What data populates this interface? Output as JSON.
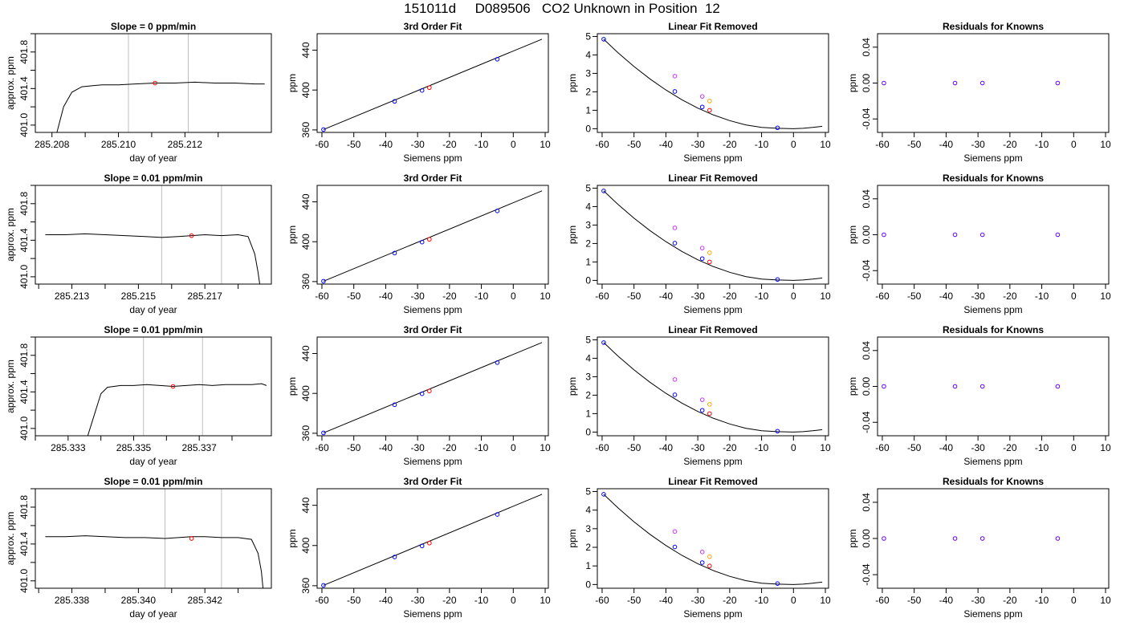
{
  "page_title": "151011d     D089506   CO2 Unknown in Position  12",
  "colors": {
    "trace": "#000000",
    "vline": "#bebebe",
    "known": "#0000ff",
    "unknown": "#ff0000",
    "magenta": "#cc33ff",
    "orange": "#ffa500",
    "residual": "#6600ff"
  },
  "chart_data": [
    {
      "type": "line",
      "row": 0,
      "title": "Slope =  0  ppm/min",
      "xlabel": "day of year",
      "ylabel": "approx. ppm",
      "xticks": [
        "285.208",
        "285.210",
        "285.212"
      ],
      "xtick_values": [
        285.208,
        285.21,
        285.212
      ],
      "yticks": [
        "401.0",
        "401.4",
        "401.8"
      ],
      "ytick_values": [
        401.0,
        401.4,
        401.8
      ],
      "xlim": [
        285.2075,
        285.2146
      ],
      "ylim": [
        400.92,
        402.0
      ],
      "vlines": [
        285.2103,
        285.2121
      ],
      "marker": {
        "x": 285.2111,
        "y": 401.46
      },
      "trace": {
        "x": [
          285.20815,
          285.20835,
          285.2086,
          285.2089,
          285.2092,
          285.2095,
          285.21,
          285.2105,
          285.2111,
          285.2117,
          285.2123,
          285.2129,
          285.2135,
          285.2141,
          285.2144
        ],
        "y": [
          400.92,
          401.2,
          401.36,
          401.42,
          401.43,
          401.44,
          401.44,
          401.45,
          401.46,
          401.46,
          401.47,
          401.46,
          401.46,
          401.45,
          401.45
        ]
      }
    },
    {
      "type": "line",
      "row": 1,
      "title": "Slope =  0.01  ppm/min",
      "xlabel": "day of year",
      "ylabel": "approx. ppm",
      "xticks": [
        "285.213",
        "285.215",
        "285.217"
      ],
      "xtick_values": [
        285.213,
        285.215,
        285.217
      ],
      "yticks": [
        "401.0",
        "401.4",
        "401.8"
      ],
      "ytick_values": [
        401.0,
        401.4,
        401.8
      ],
      "xlim": [
        285.2119,
        285.219
      ],
      "ylim": [
        400.92,
        402.0
      ],
      "vlines": [
        285.2157,
        285.2175
      ],
      "marker": {
        "x": 285.2166,
        "y": 401.45
      },
      "trace": {
        "x": [
          285.2122,
          285.2128,
          285.2134,
          285.214,
          285.2146,
          285.2152,
          285.2157,
          285.2162,
          285.2166,
          285.217,
          285.2175,
          285.218,
          285.2183,
          285.2185,
          285.2186,
          285.21865
        ],
        "y": [
          401.46,
          401.46,
          401.47,
          401.46,
          401.45,
          401.44,
          401.43,
          401.44,
          401.45,
          401.46,
          401.45,
          401.46,
          401.44,
          401.25,
          401.05,
          400.92
        ]
      }
    },
    {
      "type": "line",
      "row": 2,
      "title": "Slope =  0.01  ppm/min",
      "xlabel": "day of year",
      "ylabel": "approx. ppm",
      "xticks": [
        "285.333",
        "285.335",
        "285.337"
      ],
      "xtick_values": [
        285.333,
        285.335,
        285.337
      ],
      "yticks": [
        "401.0",
        "401.4",
        "401.8"
      ],
      "ytick_values": [
        401.0,
        401.4,
        401.8
      ],
      "xlim": [
        285.332,
        285.3392
      ],
      "ylim": [
        400.92,
        402.0
      ],
      "vlines": [
        285.3353,
        285.3371
      ],
      "marker": {
        "x": 285.3362,
        "y": 401.46
      },
      "trace": {
        "x": [
          285.3336,
          285.3338,
          285.334,
          285.3342,
          285.3346,
          285.335,
          285.3354,
          285.3358,
          285.3362,
          285.3366,
          285.337,
          285.3374,
          285.3378,
          285.3382,
          285.3386,
          285.3389,
          285.33905
        ],
        "y": [
          400.92,
          401.15,
          401.38,
          401.45,
          401.47,
          401.47,
          401.48,
          401.47,
          401.46,
          401.47,
          401.48,
          401.47,
          401.48,
          401.48,
          401.48,
          401.49,
          401.47
        ]
      }
    },
    {
      "type": "line",
      "row": 3,
      "title": "Slope =  0.01  ppm/min",
      "xlabel": "day of year",
      "ylabel": "approx. ppm",
      "xticks": [
        "285.338",
        "285.340",
        "285.342"
      ],
      "xtick_values": [
        285.338,
        285.34,
        285.342
      ],
      "yticks": [
        "401.0",
        "401.4",
        "401.8"
      ],
      "ytick_values": [
        401.0,
        401.4,
        401.8
      ],
      "xlim": [
        285.3369,
        285.344
      ],
      "ylim": [
        400.92,
        402.0
      ],
      "vlines": [
        285.3408,
        285.3425
      ],
      "marker": {
        "x": 285.3416,
        "y": 401.46
      },
      "trace": {
        "x": [
          285.3372,
          285.3378,
          285.3384,
          285.339,
          285.3396,
          285.3402,
          285.3408,
          285.3412,
          285.3416,
          285.342,
          285.3425,
          285.343,
          285.3434,
          285.3436,
          285.3437,
          285.34375
        ],
        "y": [
          401.48,
          401.48,
          401.49,
          401.48,
          401.47,
          401.47,
          401.46,
          401.47,
          401.48,
          401.48,
          401.47,
          401.47,
          401.45,
          401.3,
          401.1,
          400.92
        ]
      }
    },
    {
      "type": "scatter",
      "kind": "fit",
      "title": "3rd Order Fit",
      "xlabel": "Siemens ppm",
      "ylabel": "ppm",
      "xticks": [
        "-60",
        "-50",
        "-40",
        "-30",
        "-20",
        "-10",
        "0",
        "10"
      ],
      "xtick_values": [
        -60,
        -50,
        -40,
        -30,
        -20,
        -10,
        0,
        10
      ],
      "yticks": [
        "360",
        "400",
        "440"
      ],
      "ytick_values": [
        360,
        400,
        440
      ],
      "xlim": [
        -61.5,
        11
      ],
      "ylim": [
        357.5,
        456.5
      ],
      "line": {
        "x": [
          -59.5,
          9
        ],
        "y": [
          360.4,
          451.0
        ]
      },
      "knowns": {
        "x": [
          -59.5,
          -37.2,
          -28.6,
          -5.0
        ],
        "y": [
          360.4,
          388.6,
          399.6,
          430.9
        ]
      },
      "unknown": {
        "x": [
          -26.3
        ],
        "y": [
          402.4
        ]
      }
    },
    {
      "type": "scatter",
      "kind": "linear_removed",
      "title": "Linear Fit Removed",
      "xlabel": "Siemens ppm",
      "ylabel": "ppm",
      "xticks": [
        "-60",
        "-50",
        "-40",
        "-30",
        "-20",
        "-10",
        "0",
        "10"
      ],
      "xtick_values": [
        -60,
        -50,
        -40,
        -30,
        -20,
        -10,
        0,
        10
      ],
      "yticks": [
        "0",
        "1",
        "2",
        "3",
        "4",
        "5"
      ],
      "ytick_values": [
        0,
        1,
        2,
        3,
        4,
        5
      ],
      "xlim": [
        -61.5,
        11
      ],
      "ylim": [
        -0.2,
        5.15
      ],
      "curve": {
        "x": [
          -59.5,
          -55,
          -50,
          -45,
          -40,
          -35,
          -30,
          -25,
          -20,
          -15,
          -10,
          -5,
          0,
          3,
          6,
          9
        ],
        "y": [
          4.85,
          4.12,
          3.37,
          2.7,
          2.1,
          1.57,
          1.12,
          0.74,
          0.44,
          0.21,
          0.07,
          0.02,
          0.0,
          0.02,
          0.07,
          0.13
        ]
      },
      "knowns": {
        "x": [
          -59.5,
          -37.2,
          -28.6,
          -5.0
        ],
        "y": [
          4.85,
          2.02,
          1.18,
          0.05
        ]
      },
      "unknown": {
        "x": [
          -26.3
        ],
        "y": [
          1.0
        ]
      },
      "magenta": {
        "x": [
          -37.2,
          -28.6
        ],
        "y": [
          2.85,
          1.75
        ]
      },
      "orange": {
        "x": [
          -26.3
        ],
        "y": [
          1.5
        ]
      }
    },
    {
      "type": "scatter",
      "kind": "residuals",
      "title": "Residuals for Knowns",
      "xlabel": "Siemens ppm",
      "ylabel": "ppm",
      "xticks": [
        "-60",
        "-50",
        "-40",
        "-30",
        "-20",
        "-10",
        "0",
        "10"
      ],
      "xtick_values": [
        -60,
        -50,
        -40,
        -30,
        -20,
        -10,
        0,
        10
      ],
      "yticks": [
        "-0.04",
        "0.00",
        "0.04"
      ],
      "ytick_values": [
        -0.04,
        0.0,
        0.04
      ],
      "xlim": [
        -61.5,
        11
      ],
      "ylim": [
        -0.055,
        0.055
      ],
      "residuals": {
        "x": [
          -59.5,
          -37.2,
          -28.6,
          -5.0
        ],
        "y": [
          0,
          0,
          0,
          0
        ]
      }
    }
  ]
}
